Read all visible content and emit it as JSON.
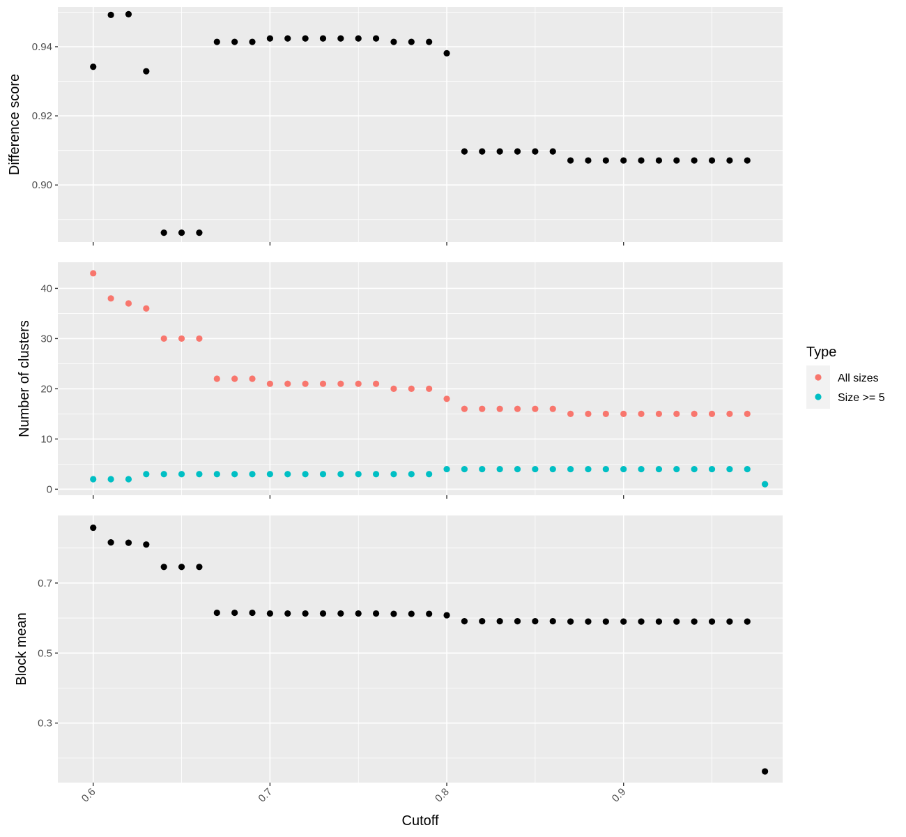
{
  "chart_data": {
    "type": "scatter",
    "xlabel": "Cutoff",
    "x_ticks": [
      0.6,
      0.7,
      0.8,
      0.9
    ],
    "x_tick_labels": [
      "0.6",
      "0.7",
      "0.8",
      "0.9"
    ],
    "xlim": [
      0.58,
      0.99
    ],
    "panels": [
      {
        "id": "difference",
        "ylabel": "Difference score",
        "ylim": [
          0.8835,
          0.9515
        ],
        "y_ticks": [
          0.9,
          0.92,
          0.94
        ],
        "y_tick_labels": [
          "0.90",
          "0.92",
          "0.94"
        ],
        "y_minor": [
          0.89,
          0.91,
          0.93,
          0.95
        ],
        "series": [
          {
            "color": "#000000",
            "x": [
              0.6,
              0.61,
              0.62,
              0.63,
              0.64,
              0.65,
              0.66,
              0.67,
              0.68,
              0.69,
              0.7,
              0.71,
              0.72,
              0.73,
              0.74,
              0.75,
              0.76,
              0.77,
              0.78,
              0.79,
              0.8,
              0.81,
              0.82,
              0.83,
              0.84,
              0.85,
              0.86,
              0.87,
              0.88,
              0.89,
              0.9,
              0.91,
              0.92,
              0.93,
              0.94,
              0.95,
              0.96,
              0.97
            ],
            "y": [
              0.9342,
              0.9492,
              0.9494,
              0.9329,
              0.8862,
              0.8862,
              0.8862,
              0.9414,
              0.9414,
              0.9414,
              0.9424,
              0.9424,
              0.9424,
              0.9424,
              0.9424,
              0.9424,
              0.9424,
              0.9414,
              0.9414,
              0.9414,
              0.9381,
              0.9097,
              0.9097,
              0.9097,
              0.9097,
              0.9097,
              0.9097,
              0.9071,
              0.9071,
              0.9071,
              0.9071,
              0.9071,
              0.9071,
              0.9071,
              0.9071,
              0.9071,
              0.9071,
              0.9071
            ]
          }
        ]
      },
      {
        "id": "clusters",
        "ylabel": "Number of clusters",
        "ylim": [
          -1.2,
          45.2
        ],
        "y_ticks": [
          0,
          10,
          20,
          30,
          40
        ],
        "y_tick_labels": [
          "0",
          "10",
          "20",
          "30",
          "40"
        ],
        "y_minor": [
          5,
          15,
          25,
          35
        ],
        "series": [
          {
            "name": "All sizes",
            "color": "#F8766D",
            "x": [
              0.6,
              0.61,
              0.62,
              0.63,
              0.64,
              0.65,
              0.66,
              0.67,
              0.68,
              0.69,
              0.7,
              0.71,
              0.72,
              0.73,
              0.74,
              0.75,
              0.76,
              0.77,
              0.78,
              0.79,
              0.8,
              0.81,
              0.82,
              0.83,
              0.84,
              0.85,
              0.86,
              0.87,
              0.88,
              0.89,
              0.9,
              0.91,
              0.92,
              0.93,
              0.94,
              0.95,
              0.96,
              0.97,
              0.98
            ],
            "y": [
              43,
              38,
              37,
              36,
              30,
              30,
              30,
              22,
              22,
              22,
              21,
              21,
              21,
              21,
              21,
              21,
              21,
              20,
              20,
              20,
              18,
              16,
              16,
              16,
              16,
              16,
              16,
              15,
              15,
              15,
              15,
              15,
              15,
              15,
              15,
              15,
              15,
              15,
              1
            ]
          },
          {
            "name": "Size >= 5",
            "color": "#00BFC4",
            "x": [
              0.6,
              0.61,
              0.62,
              0.63,
              0.64,
              0.65,
              0.66,
              0.67,
              0.68,
              0.69,
              0.7,
              0.71,
              0.72,
              0.73,
              0.74,
              0.75,
              0.76,
              0.77,
              0.78,
              0.79,
              0.8,
              0.81,
              0.82,
              0.83,
              0.84,
              0.85,
              0.86,
              0.87,
              0.88,
              0.89,
              0.9,
              0.91,
              0.92,
              0.93,
              0.94,
              0.95,
              0.96,
              0.97,
              0.98
            ],
            "y": [
              2,
              2,
              2,
              3,
              3,
              3,
              3,
              3,
              3,
              3,
              3,
              3,
              3,
              3,
              3,
              3,
              3,
              3,
              3,
              3,
              4,
              4,
              4,
              4,
              4,
              4,
              4,
              4,
              4,
              4,
              4,
              4,
              4,
              4,
              4,
              4,
              4,
              4,
              1
            ]
          }
        ]
      },
      {
        "id": "blockmean",
        "ylabel": "Block mean",
        "ylim": [
          0.13,
          0.893
        ],
        "y_ticks": [
          0.3,
          0.5,
          0.7
        ],
        "y_tick_labels": [
          "0.3",
          "0.5",
          "0.7"
        ],
        "y_minor": [
          0.2,
          0.4,
          0.6,
          0.8
        ],
        "series": [
          {
            "color": "#000000",
            "x": [
              0.6,
              0.61,
              0.62,
              0.63,
              0.64,
              0.65,
              0.66,
              0.67,
              0.68,
              0.69,
              0.7,
              0.71,
              0.72,
              0.73,
              0.74,
              0.75,
              0.76,
              0.77,
              0.78,
              0.79,
              0.8,
              0.81,
              0.82,
              0.83,
              0.84,
              0.85,
              0.86,
              0.87,
              0.88,
              0.89,
              0.9,
              0.91,
              0.92,
              0.93,
              0.94,
              0.95,
              0.96,
              0.97,
              0.98
            ],
            "y": [
              0.858,
              0.816,
              0.815,
              0.81,
              0.746,
              0.746,
              0.746,
              0.615,
              0.615,
              0.615,
              0.613,
              0.613,
              0.613,
              0.613,
              0.613,
              0.613,
              0.613,
              0.612,
              0.612,
              0.612,
              0.608,
              0.591,
              0.591,
              0.591,
              0.591,
              0.591,
              0.591,
              0.59,
              0.59,
              0.59,
              0.59,
              0.59,
              0.59,
              0.59,
              0.59,
              0.59,
              0.59,
              0.59,
              0.162
            ]
          }
        ]
      }
    ],
    "legend": {
      "title": "Type",
      "placement": "right",
      "entries": [
        {
          "label": "All sizes",
          "color": "#F8766D"
        },
        {
          "label": "Size >= 5",
          "color": "#00BFC4"
        }
      ]
    },
    "grid": true
  }
}
